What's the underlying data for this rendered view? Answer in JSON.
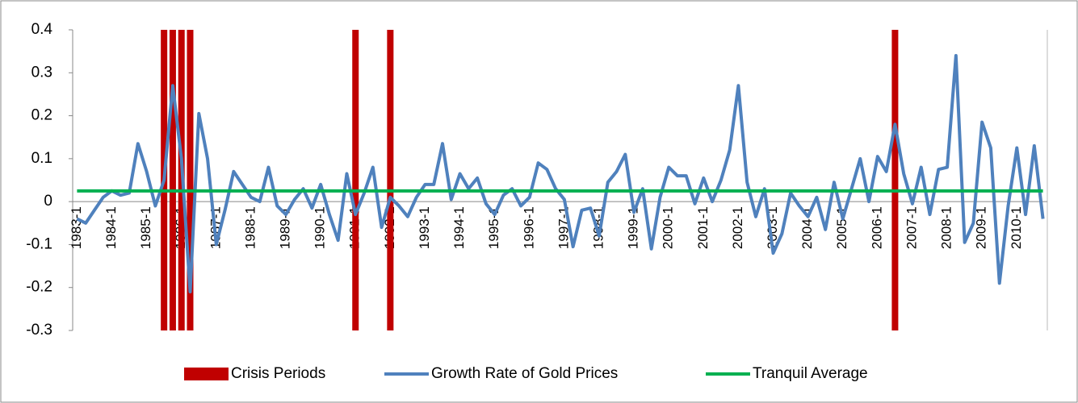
{
  "chart_data": {
    "type": "combo",
    "categories": [
      "1983-1",
      null,
      null,
      null,
      "1984-1",
      null,
      null,
      null,
      "1985-1",
      null,
      null,
      null,
      "1986-1",
      null,
      null,
      null,
      "1987-1",
      null,
      null,
      null,
      "1988-1",
      null,
      null,
      null,
      "1989-1",
      null,
      null,
      null,
      "1990-1",
      null,
      null,
      null,
      "1991-1",
      null,
      null,
      null,
      "1992-1",
      null,
      null,
      null,
      "1993-1",
      null,
      null,
      null,
      "1994-1",
      null,
      null,
      null,
      "1995-1",
      null,
      null,
      null,
      "1996-1",
      null,
      null,
      null,
      "1997-1",
      null,
      null,
      null,
      "1998-1",
      null,
      null,
      null,
      "1999-1",
      null,
      null,
      null,
      "2000-1",
      null,
      null,
      null,
      "2001-1",
      null,
      null,
      null,
      "2002-1",
      null,
      null,
      null,
      "2003-1",
      null,
      null,
      null,
      "2004-1",
      null,
      null,
      null,
      "2005-1",
      null,
      null,
      null,
      "2006-1",
      null,
      null,
      null,
      "2007-1",
      null,
      null,
      null,
      "2008-1",
      null,
      null,
      null,
      "2009-1",
      null,
      null,
      null,
      "2010-1",
      null,
      null,
      null
    ],
    "series": [
      {
        "name": "Crisis Periods",
        "type": "bar",
        "color": "#c00000",
        "values": [
          null,
          null,
          null,
          null,
          null,
          null,
          null,
          null,
          null,
          null,
          0.4,
          0.4,
          0.4,
          0.4,
          null,
          null,
          null,
          null,
          null,
          null,
          null,
          null,
          null,
          null,
          null,
          null,
          null,
          null,
          null,
          null,
          null,
          null,
          0.4,
          null,
          null,
          null,
          0.4,
          null,
          null,
          null,
          null,
          null,
          null,
          null,
          null,
          null,
          null,
          null,
          null,
          null,
          null,
          null,
          null,
          null,
          null,
          null,
          null,
          null,
          null,
          null,
          null,
          null,
          null,
          null,
          null,
          null,
          null,
          null,
          null,
          null,
          null,
          null,
          null,
          null,
          null,
          null,
          null,
          null,
          null,
          null,
          null,
          null,
          null,
          null,
          null,
          null,
          null,
          null,
          null,
          null,
          null,
          null,
          null,
          null,
          0.4,
          null,
          null,
          null,
          null,
          null,
          null,
          null,
          null,
          null,
          null,
          null,
          null,
          null,
          null,
          null,
          null,
          null
        ]
      },
      {
        "name": "Growth Rate of Gold Prices",
        "type": "line",
        "color": "#4f81bd",
        "values": [
          -0.04,
          -0.05,
          -0.02,
          0.01,
          0.025,
          0.015,
          0.02,
          0.135,
          0.07,
          -0.01,
          0.05,
          0.27,
          0.1,
          -0.21,
          0.205,
          0.1,
          -0.1,
          -0.02,
          0.07,
          0.04,
          0.01,
          0,
          0.08,
          -0.01,
          -0.03,
          0.005,
          0.03,
          -0.015,
          0.04,
          -0.03,
          -0.09,
          0.065,
          -0.03,
          0.02,
          0.08,
          -0.06,
          0.01,
          -0.01,
          -0.035,
          0.01,
          0.04,
          0.04,
          0.135,
          0.005,
          0.065,
          0.03,
          0.055,
          -0.005,
          -0.03,
          0.015,
          0.03,
          -0.01,
          0.01,
          0.09,
          0.075,
          0.03,
          0.005,
          -0.105,
          -0.02,
          -0.015,
          -0.08,
          0.045,
          0.07,
          0.11,
          -0.025,
          0.03,
          -0.11,
          0.01,
          0.08,
          0.06,
          0.06,
          -0.005,
          0.055,
          0,
          0.05,
          0.12,
          0.27,
          0.045,
          -0.035,
          0.03,
          -0.12,
          -0.075,
          0.02,
          -0.01,
          -0.035,
          0.01,
          -0.065,
          0.045,
          -0.04,
          0.03,
          0.1,
          0,
          0.105,
          0.07,
          0.18,
          0.065,
          -0.005,
          0.08,
          -0.03,
          0.075,
          0.08,
          0.34,
          -0.095,
          -0.05,
          0.185,
          0.125,
          -0.19,
          -0.01,
          0.125,
          -0.03,
          0.13,
          -0.04
        ]
      },
      {
        "name": "Tranquil Average",
        "type": "line",
        "color": "#00b050",
        "values": [
          0.025,
          0.025,
          0.025,
          0.025,
          0.025,
          0.025,
          0.025,
          0.025,
          0.025,
          0.025,
          0.025,
          0.025,
          0.025,
          0.025,
          0.025,
          0.025,
          0.025,
          0.025,
          0.025,
          0.025,
          0.025,
          0.025,
          0.025,
          0.025,
          0.025,
          0.025,
          0.025,
          0.025,
          0.025,
          0.025,
          0.025,
          0.025,
          0.025,
          0.025,
          0.025,
          0.025,
          0.025,
          0.025,
          0.025,
          0.025,
          0.025,
          0.025,
          0.025,
          0.025,
          0.025,
          0.025,
          0.025,
          0.025,
          0.025,
          0.025,
          0.025,
          0.025,
          0.025,
          0.025,
          0.025,
          0.025,
          0.025,
          0.025,
          0.025,
          0.025,
          0.025,
          0.025,
          0.025,
          0.025,
          0.025,
          0.025,
          0.025,
          0.025,
          0.025,
          0.025,
          0.025,
          0.025,
          0.025,
          0.025,
          0.025,
          0.025,
          0.025,
          0.025,
          0.025,
          0.025,
          0.025,
          0.025,
          0.025,
          0.025,
          0.025,
          0.025,
          0.025,
          0.025,
          0.025,
          0.025,
          0.025,
          0.025,
          0.025,
          0.025,
          0.025,
          0.025,
          0.025,
          0.025,
          0.025,
          0.025,
          0.025,
          0.025,
          0.025,
          0.025,
          0.025,
          0.025,
          0.025,
          0.025,
          0.025,
          0.025,
          0.025,
          0.025
        ]
      }
    ],
    "ylim": [
      -0.3,
      0.4
    ],
    "yticks": [
      -0.3,
      -0.2,
      -0.1,
      0,
      0.1,
      0.2,
      0.3,
      0.4
    ],
    "grid": false,
    "legend": "bottom"
  }
}
